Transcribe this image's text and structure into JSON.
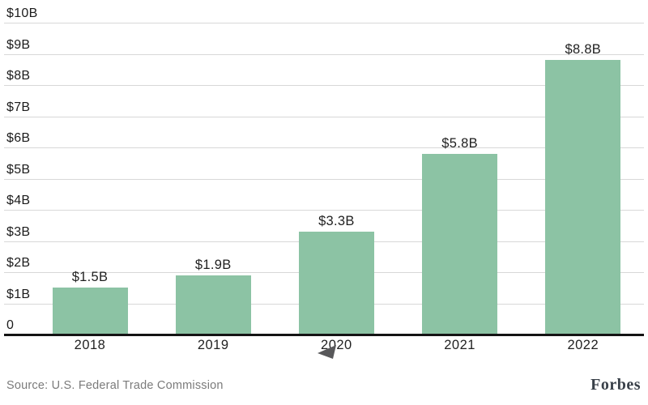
{
  "chart_data": {
    "type": "bar",
    "title": "",
    "categories": [
      "2018",
      "2019",
      "2020",
      "2021",
      "2022"
    ],
    "values": [
      1.5,
      1.9,
      3.3,
      5.8,
      8.8
    ],
    "bar_labels": [
      "$1.5B",
      "$1.9B",
      "$3.3B",
      "$5.8B",
      "$8.8B"
    ],
    "y_ticks": [
      {
        "label": "$10B",
        "value": 10
      },
      {
        "label": "$9B",
        "value": 9
      },
      {
        "label": "$8B",
        "value": 8
      },
      {
        "label": "$7B",
        "value": 7
      },
      {
        "label": "$6B",
        "value": 6
      },
      {
        "label": "$5B",
        "value": 5
      },
      {
        "label": "$4B",
        "value": 4
      },
      {
        "label": "$3B",
        "value": 3
      },
      {
        "label": "$2B",
        "value": 2
      },
      {
        "label": "$1B",
        "value": 1
      },
      {
        "label": "0",
        "value": 0
      }
    ],
    "ylim": [
      0,
      10
    ],
    "xlabel": "",
    "ylabel": "",
    "grid": "horizontal",
    "legend": "none",
    "colors": {
      "bar": "#8cc3a4",
      "gridline": "#d8d8d8",
      "axis": "#141414",
      "tick_text": "#1c1c1c",
      "value_text": "#1f1f1f"
    }
  },
  "footer": {
    "source": "Source: U.S. Federal Trade Commission",
    "brand": "Forbes",
    "colors": {
      "source_text": "#7b7b7b",
      "brand_text": "#394049"
    }
  },
  "icons": {
    "cursor": "left-pointing-cursor-triangle",
    "cursor_color": "#58585a"
  }
}
